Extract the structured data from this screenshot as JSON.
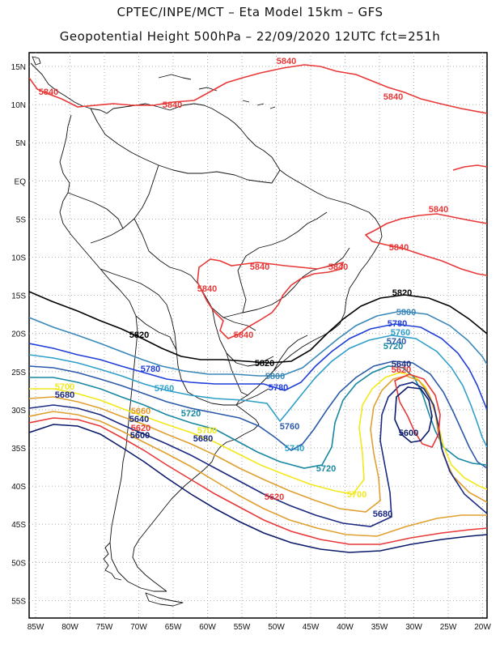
{
  "title": {
    "line1": "CPTEC/INPE/MCT –  Eta Model 15km – GFS",
    "line2": "Geopotential Height 500hPa – 22/09/2020 12UTC fct=251h"
  },
  "lat_labels": [
    "15N",
    "10N",
    "5N",
    "EQ",
    "5S",
    "10S",
    "15S",
    "20S",
    "25S",
    "30S",
    "35S",
    "40S",
    "45S",
    "50S",
    "55S"
  ],
  "lon_labels": [
    "85W",
    "80W",
    "75W",
    "70W",
    "65W",
    "60W",
    "55W",
    "50W",
    "45W",
    "40W",
    "35W",
    "30W",
    "25W",
    "20W"
  ],
  "contours": [
    {
      "level": "5840",
      "color": "#e83838"
    },
    {
      "level": "5820",
      "color": "#000000"
    },
    {
      "level": "5800",
      "color": "#3a88b8"
    },
    {
      "level": "5780",
      "color": "#1f3ed8"
    },
    {
      "level": "5760",
      "color": "#2e9fc8"
    },
    {
      "level": "5740",
      "color": "#2a5aa8"
    },
    {
      "level": "5720",
      "color": "#1888a0"
    },
    {
      "level": "5700",
      "color": "#f2e81a"
    },
    {
      "level": "5680",
      "color": "#e0a030"
    },
    {
      "level": "5660",
      "color": "#e89a2a"
    },
    {
      "level": "5640",
      "color": "#1a2a80"
    },
    {
      "level": "5620",
      "color": "#e83838"
    },
    {
      "level": "5600",
      "color": "#0a1a6a"
    }
  ],
  "labels": {
    "c5840_a": "5840",
    "c5840_b": "5840",
    "c5840_c": "5840",
    "c5840_d": "5840",
    "c5840_e": "5840",
    "c5840_f": "5840",
    "c5840_g": "5840",
    "c5840_h": "5840",
    "c5840_i": "5840",
    "c5820_a": "5820",
    "c5820_b": "5820",
    "c5820_c": "5820",
    "c5800_a": "5800",
    "c5800_b": "5800",
    "c5780_a": "5780",
    "c5780_b": "5780",
    "c5780_c": "5780",
    "c5760_a": "5760",
    "c5760_b": "5760",
    "c5760_c": "5760",
    "c5740_a": "5740",
    "c5740_b": "5740",
    "c5720_a": "5720",
    "c5720_b": "5720",
    "c5720_c": "5720",
    "c5700_a": "5700",
    "c5700_b": "5700",
    "c5700_c": "5700",
    "c5680_a": "5680",
    "c5680_b": "5680",
    "c5680_c": "5680",
    "c5660_a": "5660",
    "c5640_a": "5640",
    "c5640_b": "5640",
    "c5620_a": "5620",
    "c5620_b": "5620",
    "c5620_c": "5620",
    "c5600_a": "5600",
    "c5600_b": "5600"
  }
}
